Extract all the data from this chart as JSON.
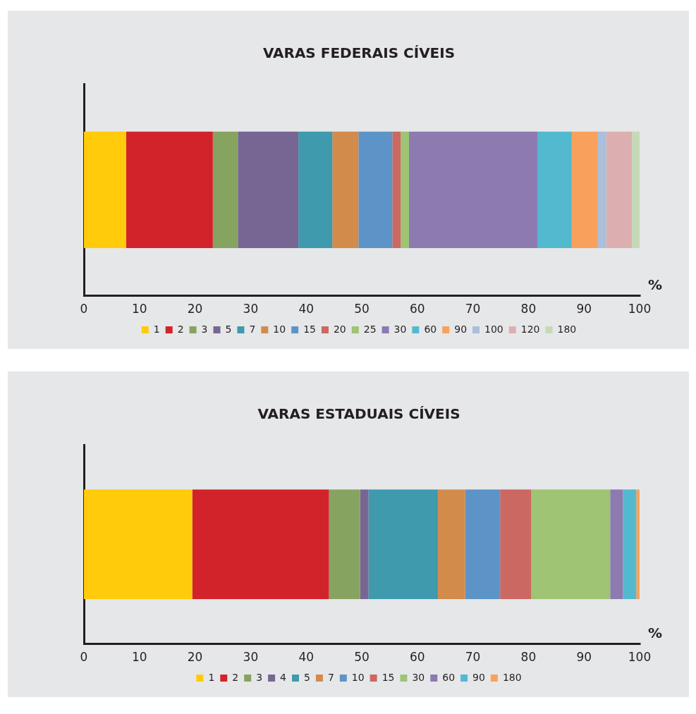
{
  "chart_data": [
    {
      "type": "bar",
      "title": "VARAS FEDERAIS CÍVEIS",
      "xlabel": "%",
      "orientation": "horizontal",
      "stacked": true,
      "legend": "bottom",
      "tick_labels": "x",
      "categories": [
        null
      ],
      "xlim": [
        0,
        100
      ],
      "xticks": [
        0,
        10,
        20,
        30,
        40,
        50,
        60,
        70,
        80,
        90,
        100
      ],
      "series": [
        {
          "name": "1",
          "color": "#ffcb0a",
          "values": [
            7.6
          ]
        },
        {
          "name": "2",
          "color": "#d2232a",
          "values": [
            15.6
          ]
        },
        {
          "name": "3",
          "color": "#87a360",
          "values": [
            4.5
          ]
        },
        {
          "name": "5",
          "color": "#776693",
          "values": [
            10.9
          ]
        },
        {
          "name": "7",
          "color": "#3f9aad",
          "values": [
            6.1
          ]
        },
        {
          "name": "10",
          "color": "#d38b4c",
          "values": [
            4.7
          ]
        },
        {
          "name": "15",
          "color": "#5d94c8",
          "values": [
            6.1
          ]
        },
        {
          "name": "20",
          "color": "#cb6862",
          "values": [
            1.5
          ]
        },
        {
          "name": "25",
          "color": "#9ec474",
          "values": [
            1.5
          ]
        },
        {
          "name": "30",
          "color": "#8c7ab1",
          "values": [
            23.1
          ]
        },
        {
          "name": "60",
          "color": "#53b9cf",
          "values": [
            6.2
          ]
        },
        {
          "name": "90",
          "color": "#f8a15c",
          "values": [
            4.7
          ]
        },
        {
          "name": "100",
          "color": "#a9bfda",
          "values": [
            1.5
          ]
        },
        {
          "name": "120",
          "color": "#ddaeaf",
          "values": [
            4.6
          ]
        },
        {
          "name": "180",
          "color": "#c6d9b7",
          "values": [
            1.4
          ]
        }
      ]
    },
    {
      "type": "bar",
      "title": "VARAS ESTADUAIS CÍVEIS",
      "xlabel": "%",
      "orientation": "horizontal",
      "stacked": true,
      "legend": "bottom",
      "tick_labels": "x",
      "categories": [
        null
      ],
      "xlim": [
        0,
        100
      ],
      "xticks": [
        0,
        10,
        20,
        30,
        40,
        50,
        60,
        70,
        80,
        90,
        100
      ],
      "series": [
        {
          "name": "1",
          "color": "#ffcb0a",
          "values": [
            19.5
          ]
        },
        {
          "name": "2",
          "color": "#d2232a",
          "values": [
            24.6
          ]
        },
        {
          "name": "3",
          "color": "#87a360",
          "values": [
            5.6
          ]
        },
        {
          "name": "4",
          "color": "#776693",
          "values": [
            1.5
          ]
        },
        {
          "name": "5",
          "color": "#3f9aad",
          "values": [
            12.5
          ]
        },
        {
          "name": "7",
          "color": "#d38b4c",
          "values": [
            4.9
          ]
        },
        {
          "name": "10",
          "color": "#5d94c8",
          "values": [
            6.3
          ]
        },
        {
          "name": "15",
          "color": "#cb6862",
          "values": [
            5.6
          ]
        },
        {
          "name": "30",
          "color": "#9ec474",
          "values": [
            14.2
          ]
        },
        {
          "name": "60",
          "color": "#8c7ab1",
          "values": [
            2.3
          ]
        },
        {
          "name": "90",
          "color": "#53b9cf",
          "values": [
            2.4
          ]
        },
        {
          "name": "180",
          "color": "#f8a15c",
          "values": [
            0.6
          ]
        }
      ]
    }
  ]
}
